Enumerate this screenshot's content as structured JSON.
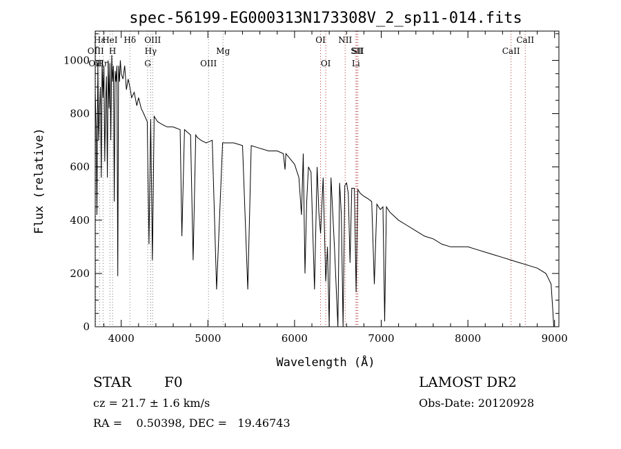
{
  "chart_data": {
    "type": "line",
    "title": "spec-56199-EG000313N173308V_2_sp11-014.fits",
    "xlabel": "Wavelength (Å)",
    "ylabel": "Flux (relative)",
    "xlim": [
      3700,
      9050
    ],
    "ylim": [
      0,
      1110
    ],
    "xticks": [
      4000,
      5000,
      6000,
      7000,
      8000,
      9000
    ],
    "yticks": [
      0,
      200,
      400,
      600,
      800,
      1000
    ],
    "series": [
      {
        "x": [
          3700,
          3710,
          3720,
          3730,
          3740,
          3750,
          3760,
          3770,
          3780,
          3790,
          3800,
          3810,
          3820,
          3830,
          3840,
          3850,
          3860,
          3870,
          3880,
          3890,
          3900,
          3910,
          3920,
          3930,
          3940,
          3950,
          3960,
          3970,
          3980,
          3990,
          4000,
          4020,
          4040,
          4060,
          4080,
          4100,
          4120,
          4150,
          4180,
          4200,
          4230,
          4260,
          4300,
          4320,
          4340,
          4360,
          4380,
          4420,
          4470,
          4530,
          4600,
          4680,
          4700,
          4730,
          4800,
          4830,
          4860,
          4880,
          4920,
          4980,
          5050,
          5100,
          5170,
          5220,
          5300,
          5400,
          5460,
          5500,
          5600,
          5700,
          5800,
          5870,
          5890,
          5900,
          5950,
          6000,
          6050,
          6080,
          6100,
          6120,
          6140,
          6160,
          6190,
          6230,
          6260,
          6280,
          6300,
          6330,
          6360,
          6380,
          6400,
          6420,
          6460,
          6500,
          6520,
          6540,
          6560,
          6580,
          6600,
          6620,
          6640,
          6660,
          6690,
          6710,
          6730,
          6760,
          6800,
          6850,
          6890,
          6920,
          6950,
          6990,
          7020,
          7040,
          7060,
          7100,
          7200,
          7300,
          7400,
          7500,
          7600,
          7700,
          7800,
          7900,
          8000,
          8100,
          8200,
          8300,
          8400,
          8500,
          8600,
          8700,
          8800,
          8900,
          8960,
          8980,
          8990,
          9000
        ],
        "values": [
          880,
          760,
          420,
          990,
          700,
          820,
          900,
          560,
          1000,
          860,
          980,
          620,
          840,
          940,
          560,
          1000,
          820,
          990,
          700,
          1020,
          920,
          980,
          470,
          960,
          920,
          980,
          190,
          980,
          920,
          1000,
          950,
          930,
          980,
          890,
          930,
          900,
          860,
          880,
          830,
          860,
          820,
          800,
          770,
          310,
          780,
          250,
          790,
          770,
          760,
          750,
          750,
          740,
          340,
          740,
          720,
          250,
          720,
          710,
          700,
          690,
          700,
          140,
          690,
          690,
          690,
          680,
          140,
          680,
          670,
          660,
          660,
          650,
          590,
          650,
          630,
          610,
          560,
          420,
          650,
          200,
          470,
          600,
          580,
          140,
          600,
          430,
          350,
          560,
          170,
          300,
          0,
          560,
          300,
          0,
          540,
          420,
          0,
          530,
          540,
          500,
          240,
          520,
          520,
          130,
          515,
          500,
          490,
          480,
          470,
          160,
          460,
          440,
          450,
          20,
          450,
          430,
          400,
          380,
          360,
          340,
          330,
          310,
          300,
          300,
          300,
          290,
          280,
          270,
          260,
          250,
          240,
          230,
          220,
          200,
          160,
          60,
          0,
          0
        ]
      }
    ],
    "line_labels": [
      {
        "text": "Hε",
        "x": 3750
      },
      {
        "text": "H",
        "x": 3900
      },
      {
        "text": "OII",
        "x": 3700
      },
      {
        "text": "HeI",
        "x": 3870
      },
      {
        "text": "OIII",
        "x": 3706
      },
      {
        "text": "Hη",
        "x": 3790
      },
      {
        "text": "Hδ",
        "x": 4100
      },
      {
        "text": "Hγ",
        "x": 4340
      },
      {
        "text": "G",
        "x": 4305
      },
      {
        "text": "OIII",
        "x": 4363
      },
      {
        "text": "Mg",
        "x": 5175
      },
      {
        "text": "OIII",
        "x": 5007
      },
      {
        "text": "NII",
        "x": 6584
      },
      {
        "text": "SII",
        "x": 6717
      },
      {
        "text": "OI",
        "x": 6360
      },
      {
        "text": "OI",
        "x": 6300
      },
      {
        "text": "SII",
        "x": 6731
      },
      {
        "text": "Li",
        "x": 6708
      },
      {
        "text": "CaII",
        "x": 8662
      },
      {
        "text": "CaII",
        "x": 8498
      }
    ]
  },
  "footer": {
    "object_class": "STAR",
    "subclass": "F0",
    "redshift": "cz = 21.7 ± 1.6 km/s",
    "coords": "RA =    0.50398, DEC =   19.46743",
    "survey": "LAMOST DR2",
    "obs_date": "Obs-Date: 20120928"
  }
}
